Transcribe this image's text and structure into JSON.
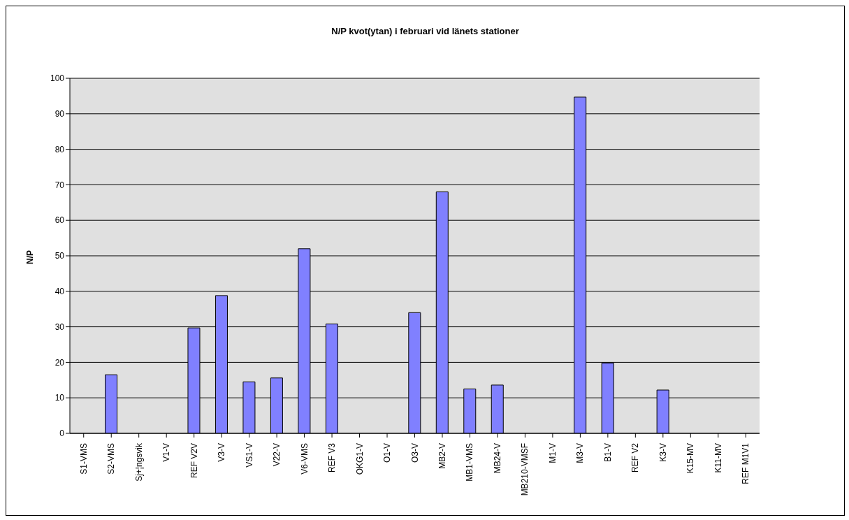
{
  "chart_data": {
    "type": "bar",
    "title": "N/P kvot(ytan) i februari vid länets stationer",
    "ylabel": "N/P",
    "categories": [
      "S1-VMS",
      "S2-VMS",
      "Sj+¦ngsvik",
      "V1-V",
      "REF V2V",
      "V3-V",
      "VS1-V",
      "V22-V",
      "V6-VMS",
      "REF V3",
      "OKG1-V",
      "O1-V",
      "O3-V",
      "MB2-V",
      "MB1-VMS",
      "MB24-V",
      "MB210-VMSF",
      "M1-V",
      "M3-V",
      "B1-V",
      "REF V2",
      "K3-V",
      "K15-MV",
      "K11-MV",
      "REF M1V1"
    ],
    "values": [
      null,
      16.5,
      null,
      null,
      29.7,
      38.8,
      14.5,
      15.6,
      52,
      30.8,
      null,
      null,
      34,
      68,
      12.5,
      13.6,
      null,
      null,
      94.7,
      19.8,
      null,
      12.2,
      null,
      null,
      null
    ],
    "color": "#8080ff",
    "ylim": [
      0,
      100
    ],
    "yticks": [
      0,
      10,
      20,
      30,
      40,
      50,
      60,
      70,
      80,
      90,
      100
    ],
    "grid": "y",
    "legend": false
  }
}
